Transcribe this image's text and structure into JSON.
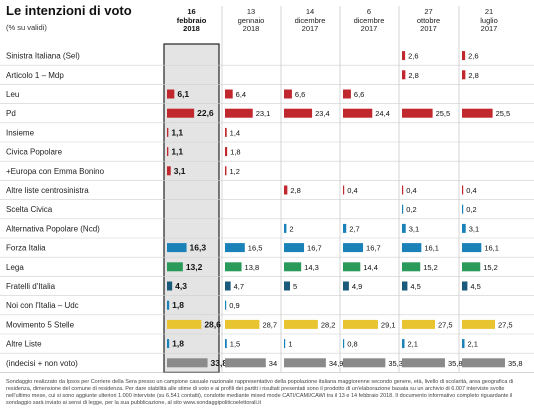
{
  "chart_data": {
    "type": "bar",
    "title": "Le intenzioni di voto",
    "subtitle": "(% su validi)",
    "dates": [
      {
        "day": "16",
        "month": "febbraio",
        "year": "2018",
        "highlight": true
      },
      {
        "day": "13",
        "month": "gennaio",
        "year": "2018",
        "highlight": false
      },
      {
        "day": "14",
        "month": "dicembre",
        "year": "2017",
        "highlight": false
      },
      {
        "day": "6",
        "month": "dicembre",
        "year": "2017",
        "highlight": false
      },
      {
        "day": "27",
        "month": "ottobre",
        "year": "2017",
        "highlight": false
      },
      {
        "day": "21",
        "month": "luglio",
        "year": "2017",
        "highlight": false
      }
    ],
    "rows": [
      {
        "label": "Sinistra Italiana (Sel)",
        "values": [
          null,
          null,
          null,
          null,
          2.6,
          2.6
        ],
        "color": "#c0282d"
      },
      {
        "label": "Articolo 1 – Mdp",
        "values": [
          null,
          null,
          null,
          null,
          2.8,
          2.8
        ],
        "color": "#c0282d"
      },
      {
        "label": "Leu",
        "values": [
          6.1,
          6.4,
          6.6,
          6.6,
          null,
          null
        ],
        "color": "#c0282d"
      },
      {
        "label": "Pd",
        "values": [
          22.6,
          23.1,
          23.4,
          24.4,
          25.5,
          25.5
        ],
        "color": "#c0282d"
      },
      {
        "label": "Insieme",
        "values": [
          1.1,
          1.4,
          null,
          null,
          null,
          null
        ],
        "color": "#c0282d"
      },
      {
        "label": "Civica Popolare",
        "values": [
          1.1,
          1.8,
          null,
          null,
          null,
          null
        ],
        "color": "#c0282d"
      },
      {
        "label": "+Europa con Emma Bonino",
        "values": [
          3.1,
          1.2,
          null,
          null,
          null,
          null
        ],
        "color": "#c0282d"
      },
      {
        "label": "Altre liste centrosinistra",
        "values": [
          null,
          null,
          2.8,
          0.4,
          0.4,
          0.4
        ],
        "color": "#c0282d"
      },
      {
        "label": "Scelta Civica",
        "values": [
          null,
          null,
          null,
          null,
          0.2,
          0.2
        ],
        "color": "#1a82b8"
      },
      {
        "label": "Alternativa Popolare (Ncd)",
        "values": [
          null,
          null,
          2.0,
          2.7,
          3.1,
          3.1
        ],
        "color": "#1a82b8"
      },
      {
        "label": "Forza Italia",
        "values": [
          16.3,
          16.5,
          16.7,
          16.7,
          16.1,
          16.1
        ],
        "color": "#1a82b8"
      },
      {
        "label": "Lega",
        "values": [
          13.2,
          13.8,
          14.3,
          14.4,
          15.2,
          15.2
        ],
        "color": "#2a9a5a"
      },
      {
        "label": "Fratelli d'Italia",
        "values": [
          4.3,
          4.7,
          5,
          4.9,
          4.5,
          4.5
        ],
        "color": "#1a5a7a"
      },
      {
        "label": "Noi con l'Italia – Udc",
        "values": [
          1.8,
          0.9,
          null,
          null,
          null,
          null
        ],
        "color": "#1a82b8"
      },
      {
        "label": "Movimento 5 Stelle",
        "values": [
          28.6,
          28.7,
          28.2,
          29.1,
          27.5,
          27.5
        ],
        "color": "#e8c430"
      },
      {
        "label": "Altre Liste",
        "values": [
          1.8,
          1.5,
          1,
          0.8,
          2.1,
          2.1
        ],
        "color": "#1a82b8"
      },
      {
        "label": "(indecisi + non voto)",
        "values": [
          33.8,
          34,
          34.9,
          35.3,
          35.8,
          35.8
        ],
        "color": "#8a8a8a"
      }
    ]
  },
  "footnote": "Sondaggio realizzato da Ipsos per Corriere della Sera presso un campione casuale nazionale rappresentativo della popolazione italiana maggiorenne secondo genere, età, livello di scolarità, area geografica di residenza, dimensione del comune di residenza. Per dare stabilità alle stime di voto e ai profili dei partiti i risultati presentati sono il prodotto di un'elaborazione basata su un archivio di 6.007 interviste svolte nell'ultimo mese, cui si sono aggiunte ulteriori 1.000 interviste (su 6.541 contatti), condotte mediante mixed mode CATI/CAMI/CAWI tra il 13 e 14 febbraio 2018. Il documento informativo completo riguardante il sondaggio sarà inviato ai sensi di legge, per la sua pubblicazione, al sito www.sondaggipoliticoelettorali.it"
}
